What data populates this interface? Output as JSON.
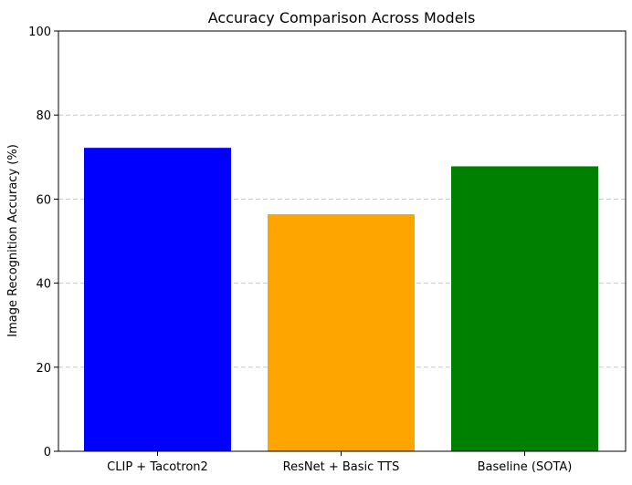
{
  "chart_data": {
    "type": "bar",
    "title": "Accuracy Comparison Across Models",
    "xlabel": "",
    "ylabel": "Image Recognition Accuracy (%)",
    "categories": [
      "CLIP + Tacotron2",
      "ResNet + Basic TTS",
      "Baseline (SOTA)"
    ],
    "values": [
      72.2,
      56.4,
      67.8
    ],
    "colors": [
      "#0000ff",
      "#ffa500",
      "#008000"
    ],
    "ylim": [
      0,
      100
    ],
    "yticks": [
      0,
      20,
      40,
      60,
      80,
      100
    ],
    "grid": "y-axis dashed",
    "legend": "none"
  }
}
